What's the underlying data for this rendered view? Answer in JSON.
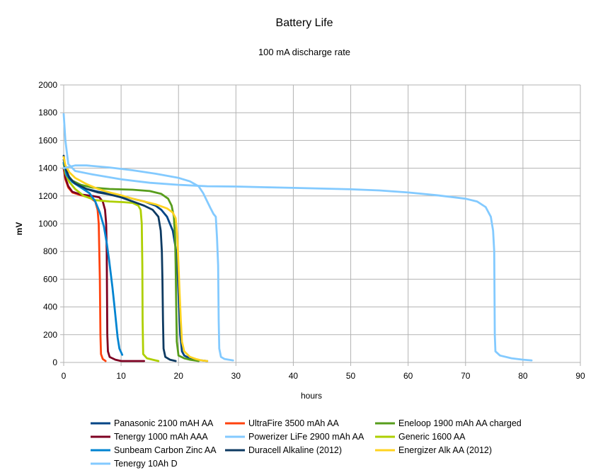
{
  "chart_data": {
    "type": "line",
    "title": "Battery Life",
    "subtitle": "100 mA discharge rate",
    "xlabel": "hours",
    "ylabel": "mV",
    "xlim": [
      0,
      90
    ],
    "ylim": [
      0,
      2000
    ],
    "xticks": [
      0,
      10,
      20,
      30,
      40,
      50,
      60,
      70,
      80,
      90
    ],
    "yticks": [
      0,
      200,
      400,
      600,
      800,
      1000,
      1200,
      1400,
      1600,
      1800,
      2000
    ],
    "grid": true,
    "legend_position": "bottom",
    "series": [
      {
        "name": "Panasonic 2100 mAH AA",
        "color": "#004586",
        "points": [
          [
            0,
            1460
          ],
          [
            0.5,
            1380
          ],
          [
            1,
            1330
          ],
          [
            2,
            1290
          ],
          [
            4,
            1250
          ],
          [
            6,
            1230
          ],
          [
            8,
            1215
          ],
          [
            10,
            1200
          ],
          [
            12,
            1180
          ],
          [
            14,
            1160
          ],
          [
            16,
            1130
          ],
          [
            17,
            1100
          ],
          [
            18,
            1050
          ],
          [
            19,
            950
          ],
          [
            19.6,
            800
          ],
          [
            19.9,
            600
          ],
          [
            20.1,
            400
          ],
          [
            20.3,
            200
          ],
          [
            20.6,
            80
          ],
          [
            21,
            50
          ],
          [
            22,
            30
          ],
          [
            23,
            20
          ],
          [
            24,
            15
          ],
          [
            25,
            10
          ]
        ]
      },
      {
        "name": "UltraFire 3500 mAh AA",
        "color": "#ff420e",
        "points": [
          [
            0,
            1400
          ],
          [
            0.3,
            1320
          ],
          [
            0.8,
            1260
          ],
          [
            1.5,
            1225
          ],
          [
            3,
            1205
          ],
          [
            4.5,
            1190
          ],
          [
            5.5,
            1160
          ],
          [
            5.9,
            1100
          ],
          [
            6.1,
            1000
          ],
          [
            6.2,
            800
          ],
          [
            6.3,
            600
          ],
          [
            6.35,
            400
          ],
          [
            6.4,
            200
          ],
          [
            6.5,
            60
          ],
          [
            6.8,
            25
          ],
          [
            7.3,
            10
          ]
        ]
      },
      {
        "name": "Eneloop 1900 mAh AA charged",
        "color": "#579d1c",
        "points": [
          [
            0,
            1440
          ],
          [
            0.5,
            1360
          ],
          [
            1.5,
            1310
          ],
          [
            3,
            1280
          ],
          [
            5,
            1260
          ],
          [
            8,
            1250
          ],
          [
            12,
            1245
          ],
          [
            15,
            1235
          ],
          [
            17,
            1215
          ],
          [
            18.2,
            1180
          ],
          [
            18.8,
            1130
          ],
          [
            19.2,
            1050
          ],
          [
            19.4,
            900
          ],
          [
            19.5,
            700
          ],
          [
            19.6,
            400
          ],
          [
            19.7,
            150
          ],
          [
            20,
            50
          ],
          [
            21,
            30
          ],
          [
            22,
            20
          ],
          [
            23.5,
            10
          ]
        ]
      },
      {
        "name": "Tenergy 1000 mAh AAA",
        "color": "#7e0021",
        "points": [
          [
            0,
            1400
          ],
          [
            0.3,
            1330
          ],
          [
            0.8,
            1270
          ],
          [
            1.5,
            1230
          ],
          [
            3,
            1210
          ],
          [
            5,
            1200
          ],
          [
            6.2,
            1190
          ],
          [
            6.8,
            1160
          ],
          [
            7.2,
            1100
          ],
          [
            7.4,
            1000
          ],
          [
            7.5,
            800
          ],
          [
            7.55,
            500
          ],
          [
            7.6,
            200
          ],
          [
            7.7,
            80
          ],
          [
            8,
            40
          ],
          [
            9,
            20
          ],
          [
            10,
            10
          ],
          [
            14,
            10
          ]
        ]
      },
      {
        "name": "Powerizer LiFe 2900 mAh AA",
        "color": "#83caff",
        "points": [
          [
            0,
            1790
          ],
          [
            0.3,
            1600
          ],
          [
            0.8,
            1430
          ],
          [
            2,
            1380
          ],
          [
            5,
            1355
          ],
          [
            10,
            1320
          ],
          [
            15,
            1295
          ],
          [
            20,
            1280
          ],
          [
            25,
            1270
          ],
          [
            30,
            1268
          ],
          [
            35,
            1263
          ],
          [
            40,
            1258
          ],
          [
            45,
            1253
          ],
          [
            50,
            1248
          ],
          [
            55,
            1240
          ],
          [
            60,
            1225
          ],
          [
            65,
            1205
          ],
          [
            70,
            1180
          ],
          [
            72,
            1160
          ],
          [
            73.5,
            1120
          ],
          [
            74.4,
            1050
          ],
          [
            74.8,
            950
          ],
          [
            75,
            800
          ],
          [
            75.05,
            500
          ],
          [
            75.1,
            200
          ],
          [
            75.2,
            80
          ],
          [
            76,
            50
          ],
          [
            78,
            30
          ],
          [
            80,
            20
          ],
          [
            81.5,
            15
          ]
        ]
      },
      {
        "name": "Generic 1600 AA",
        "color": "#aecf00",
        "points": [
          [
            0,
            1430
          ],
          [
            0.3,
            1360
          ],
          [
            1,
            1300
          ],
          [
            2,
            1250
          ],
          [
            3.5,
            1200
          ],
          [
            5.5,
            1170
          ],
          [
            8,
            1160
          ],
          [
            10.5,
            1155
          ],
          [
            12,
            1150
          ],
          [
            13,
            1130
          ],
          [
            13.4,
            1100
          ],
          [
            13.6,
            1000
          ],
          [
            13.7,
            700
          ],
          [
            13.75,
            300
          ],
          [
            13.85,
            60
          ],
          [
            14.5,
            30
          ],
          [
            15.5,
            20
          ],
          [
            16.5,
            10
          ]
        ]
      },
      {
        "name": "Sunbeam Carbon Zinc AA",
        "color": "#0084d1",
        "points": [
          [
            0,
            1440
          ],
          [
            0.5,
            1350
          ],
          [
            1.5,
            1300
          ],
          [
            3,
            1260
          ],
          [
            4.5,
            1220
          ],
          [
            5.5,
            1160
          ],
          [
            6.3,
            1080
          ],
          [
            7,
            980
          ],
          [
            7.5,
            860
          ],
          [
            7.9,
            740
          ],
          [
            8.2,
            640
          ],
          [
            8.5,
            540
          ],
          [
            8.8,
            420
          ],
          [
            9.1,
            300
          ],
          [
            9.4,
            180
          ],
          [
            9.7,
            100
          ],
          [
            10.2,
            55
          ]
        ]
      },
      {
        "name": "Duracell Alkaline (2012)",
        "color": "#0d3a62",
        "points": [
          [
            0,
            1490
          ],
          [
            0.3,
            1400
          ],
          [
            1,
            1330
          ],
          [
            2,
            1290
          ],
          [
            4,
            1250
          ],
          [
            6,
            1225
          ],
          [
            8,
            1210
          ],
          [
            10,
            1190
          ],
          [
            12,
            1160
          ],
          [
            14,
            1130
          ],
          [
            15.5,
            1100
          ],
          [
            16.5,
            1050
          ],
          [
            16.9,
            950
          ],
          [
            17.1,
            800
          ],
          [
            17.2,
            600
          ],
          [
            17.3,
            300
          ],
          [
            17.4,
            100
          ],
          [
            17.7,
            40
          ],
          [
            18.5,
            20
          ],
          [
            19.5,
            10
          ]
        ]
      },
      {
        "name": "Energizer Alk AA (2012)",
        "color": "#ffd320",
        "points": [
          [
            0,
            1480
          ],
          [
            0.3,
            1420
          ],
          [
            1,
            1370
          ],
          [
            2,
            1330
          ],
          [
            4,
            1285
          ],
          [
            6,
            1250
          ],
          [
            8,
            1225
          ],
          [
            10,
            1205
          ],
          [
            12,
            1180
          ],
          [
            14,
            1160
          ],
          [
            16,
            1140
          ],
          [
            18,
            1110
          ],
          [
            19,
            1080
          ],
          [
            19.5,
            1040
          ],
          [
            19.8,
            900
          ],
          [
            20,
            700
          ],
          [
            20.2,
            500
          ],
          [
            20.4,
            300
          ],
          [
            20.6,
            150
          ],
          [
            21,
            80
          ],
          [
            22,
            40
          ],
          [
            23,
            25
          ],
          [
            24,
            15
          ],
          [
            25,
            10
          ]
        ]
      },
      {
        "name": "Tenergy 10Ah D",
        "color": "#83caff",
        "points": [
          [
            0,
            1400
          ],
          [
            2,
            1420
          ],
          [
            4,
            1420
          ],
          [
            8,
            1405
          ],
          [
            12,
            1385
          ],
          [
            16,
            1360
          ],
          [
            20,
            1330
          ],
          [
            22,
            1305
          ],
          [
            23.5,
            1270
          ],
          [
            24.3,
            1220
          ],
          [
            25,
            1160
          ],
          [
            25.6,
            1110
          ],
          [
            26.1,
            1070
          ],
          [
            26.5,
            1050
          ],
          [
            26.7,
            900
          ],
          [
            26.9,
            700
          ],
          [
            27,
            300
          ],
          [
            27.1,
            100
          ],
          [
            27.4,
            40
          ],
          [
            28,
            25
          ],
          [
            29.5,
            15
          ]
        ]
      }
    ]
  }
}
